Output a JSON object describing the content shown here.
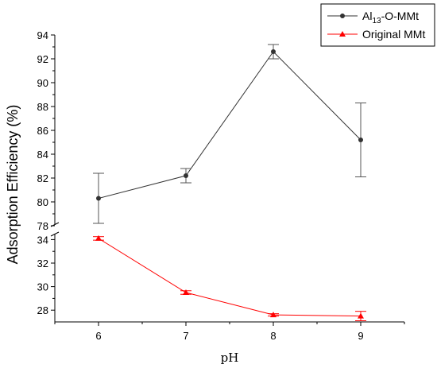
{
  "chart_data": {
    "type": "line",
    "xlabel": "pH",
    "ylabel": "Adsorption Efficiency (%)",
    "x": [
      6,
      7,
      8,
      9
    ],
    "x_ticks": [
      "6",
      "7",
      "8",
      "9"
    ],
    "xlim": [
      5.5,
      9.5
    ],
    "y_broken_axis": true,
    "y_upper_range": [
      78,
      94
    ],
    "y_upper_ticks": [
      "78",
      "80",
      "82",
      "84",
      "86",
      "88",
      "90",
      "92",
      "94"
    ],
    "y_lower_range": [
      27,
      34.5
    ],
    "y_lower_ticks": [
      "28",
      "30",
      "32",
      "34"
    ],
    "legend_position": "top-right",
    "legend": [
      {
        "main": "Al",
        "sub": "13",
        "rest": "-O-MMt"
      },
      {
        "main": "Original MMt",
        "sub": "",
        "rest": ""
      }
    ],
    "series": [
      {
        "values": [
          80.3,
          82.2,
          92.6,
          85.2
        ],
        "error": [
          2.1,
          0.6,
          0.6,
          3.1
        ],
        "color": "#333333",
        "marker": "circle"
      },
      {
        "values": [
          34.1,
          29.5,
          27.6,
          27.5
        ],
        "error": [
          0.15,
          0.15,
          0.1,
          0.4
        ],
        "color": "#ff0000",
        "marker": "triangle"
      }
    ]
  }
}
